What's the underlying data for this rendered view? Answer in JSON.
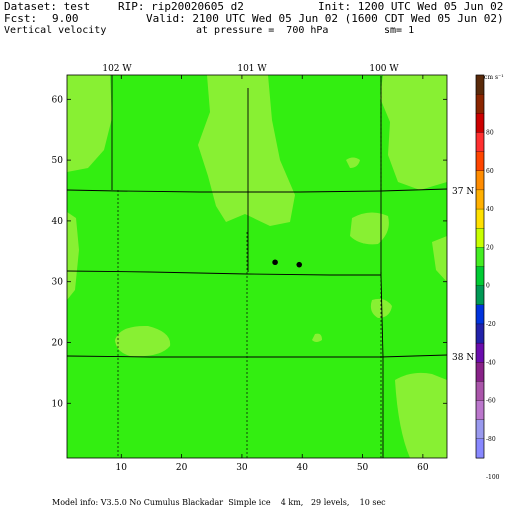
{
  "header": {
    "dataset": "Dataset: test",
    "rip": "RIP: rip20020605 d2",
    "init": "Init: 1200 UTC Wed 05 Jun 02",
    "fcst_label": "Fcst:",
    "fcst_value": "9.00",
    "valid": "Valid: 2100 UTC Wed 05 Jun 02 (1600 CDT Wed 05 Jun 02)",
    "field": "Vertical velocity",
    "pressure": "at pressure =  700 hPa",
    "smoothing": "sm= 1"
  },
  "map": {
    "longitude_labels": [
      "102 W",
      "101 W",
      "100 W"
    ],
    "latitude_labels": [
      "37 N",
      "38 N"
    ],
    "x_ticks": [
      "10",
      "20",
      "30",
      "40",
      "50",
      "60"
    ],
    "y_ticks": [
      "10",
      "20",
      "30",
      "40",
      "50",
      "60"
    ],
    "grid_x_range": [
      1,
      64
    ],
    "grid_y_range": [
      1,
      64
    ],
    "stations": [
      {
        "x": 35.5,
        "y": 33.2
      },
      {
        "x": 39.5,
        "y": 32.8
      }
    ],
    "colors": {
      "background_green": "#33ee11",
      "light_green": "#88f033"
    }
  },
  "colorbar": {
    "unit": "cm s⁻¹",
    "labels": [
      "80",
      "60",
      "40",
      "20",
      "0",
      "-20",
      "-40",
      "-60",
      "-80",
      "-100"
    ],
    "colors": [
      "#5a2a0a",
      "#8b2500",
      "#cc0000",
      "#ff3030",
      "#ff4500",
      "#ff8c00",
      "#ffb000",
      "#ffe000",
      "#c8ff00",
      "#44ee22",
      "#00cc33",
      "#009955",
      "#0033dd",
      "#2222aa",
      "#6a0dad",
      "#882288",
      "#aa55aa",
      "#bb77cc",
      "#9999ee",
      "#8888ff"
    ]
  },
  "footer": {
    "model_info": "Model info: V3.5.0 No Cumulus Blackadar  Simple ice    4 km,   29 levels,    10 sec"
  }
}
